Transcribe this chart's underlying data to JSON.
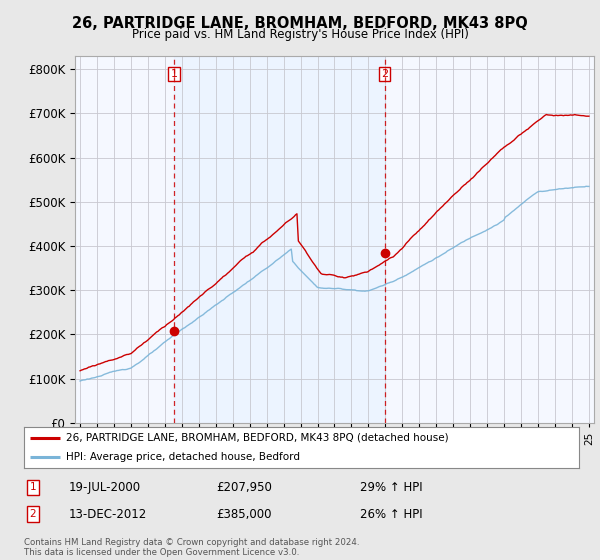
{
  "title": "26, PARTRIDGE LANE, BROMHAM, BEDFORD, MK43 8PQ",
  "subtitle": "Price paid vs. HM Land Registry's House Price Index (HPI)",
  "legend_line1": "26, PARTRIDGE LANE, BROMHAM, BEDFORD, MK43 8PQ (detached house)",
  "legend_line2": "HPI: Average price, detached house, Bedford",
  "sale1_date": "19-JUL-2000",
  "sale1_price": "£207,950",
  "sale1_hpi": "29% ↑ HPI",
  "sale2_date": "13-DEC-2012",
  "sale2_price": "£385,000",
  "sale2_hpi": "26% ↑ HPI",
  "footer": "Contains HM Land Registry data © Crown copyright and database right 2024.\nThis data is licensed under the Open Government Licence v3.0.",
  "hpi_color": "#7ab4d8",
  "price_color": "#cc0000",
  "vline_color": "#cc0000",
  "shade_color": "#ddeeff",
  "bg_color": "#e8e8e8",
  "plot_bg": "#f5f8ff",
  "ylim": [
    0,
    830000
  ],
  "yticks": [
    0,
    100000,
    200000,
    300000,
    400000,
    500000,
    600000,
    700000,
    800000
  ],
  "sale1_x": 2000.54,
  "sale1_y": 207950,
  "sale2_x": 2012.95,
  "sale2_y": 385000,
  "xmin": 1994.7,
  "xmax": 2025.3
}
